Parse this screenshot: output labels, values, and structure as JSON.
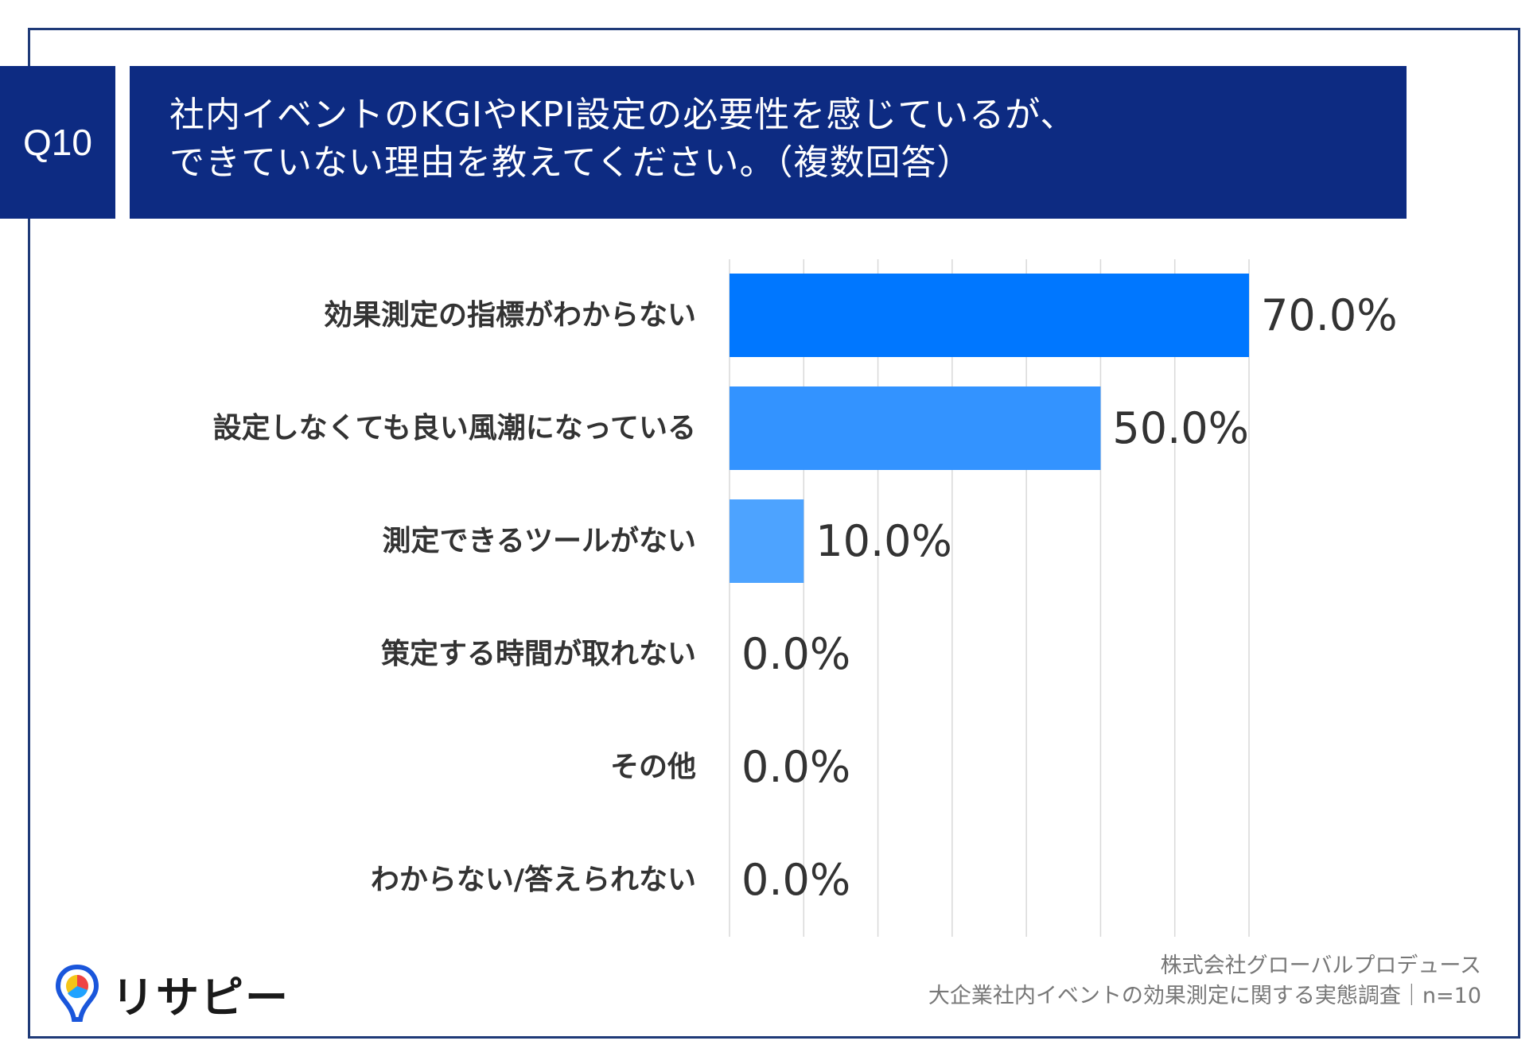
{
  "header": {
    "badge": "Q10",
    "title_line1": "社内イベントのKGIやKPI設定の必要性を感じているが、",
    "title_line2": "できていない理由を教えてください。（複数回答）"
  },
  "chart_data": {
    "type": "bar",
    "orientation": "horizontal",
    "title": "社内イベントのKGIやKPI設定の必要性を感じているが、できていない理由を教えてください。（複数回答）",
    "categories": [
      "効果測定の指標がわからない",
      "設定しなくても良い風潮になっている",
      "測定できるツールがない",
      "策定する時間が取れない",
      "その他",
      "わからない/答えられない"
    ],
    "values": [
      70.0,
      50.0,
      10.0,
      0.0,
      0.0,
      0.0
    ],
    "value_labels": [
      "70.0%",
      "50.0%",
      "10.0%",
      "0.0%",
      "0.0%",
      "0.0%"
    ],
    "xlim": [
      0,
      70
    ],
    "x_gridline_step": 10,
    "bar_colors": [
      "#0077ff",
      "#3393ff",
      "#4da3ff",
      "#6ab3ff",
      "#6ab3ff",
      "#6ab3ff"
    ],
    "gridline_color": "#d9d9d9"
  },
  "footer": {
    "company": "株式会社グローバルプロデュース",
    "survey": "大企業社内イベントの効果測定に関する実態調査｜n=10"
  },
  "logo": {
    "text": "リサピー",
    "icon": "map-pin-pie-icon",
    "colors": [
      "#1a56db",
      "#f5c518",
      "#ef4444",
      "#1fa2ff"
    ]
  }
}
